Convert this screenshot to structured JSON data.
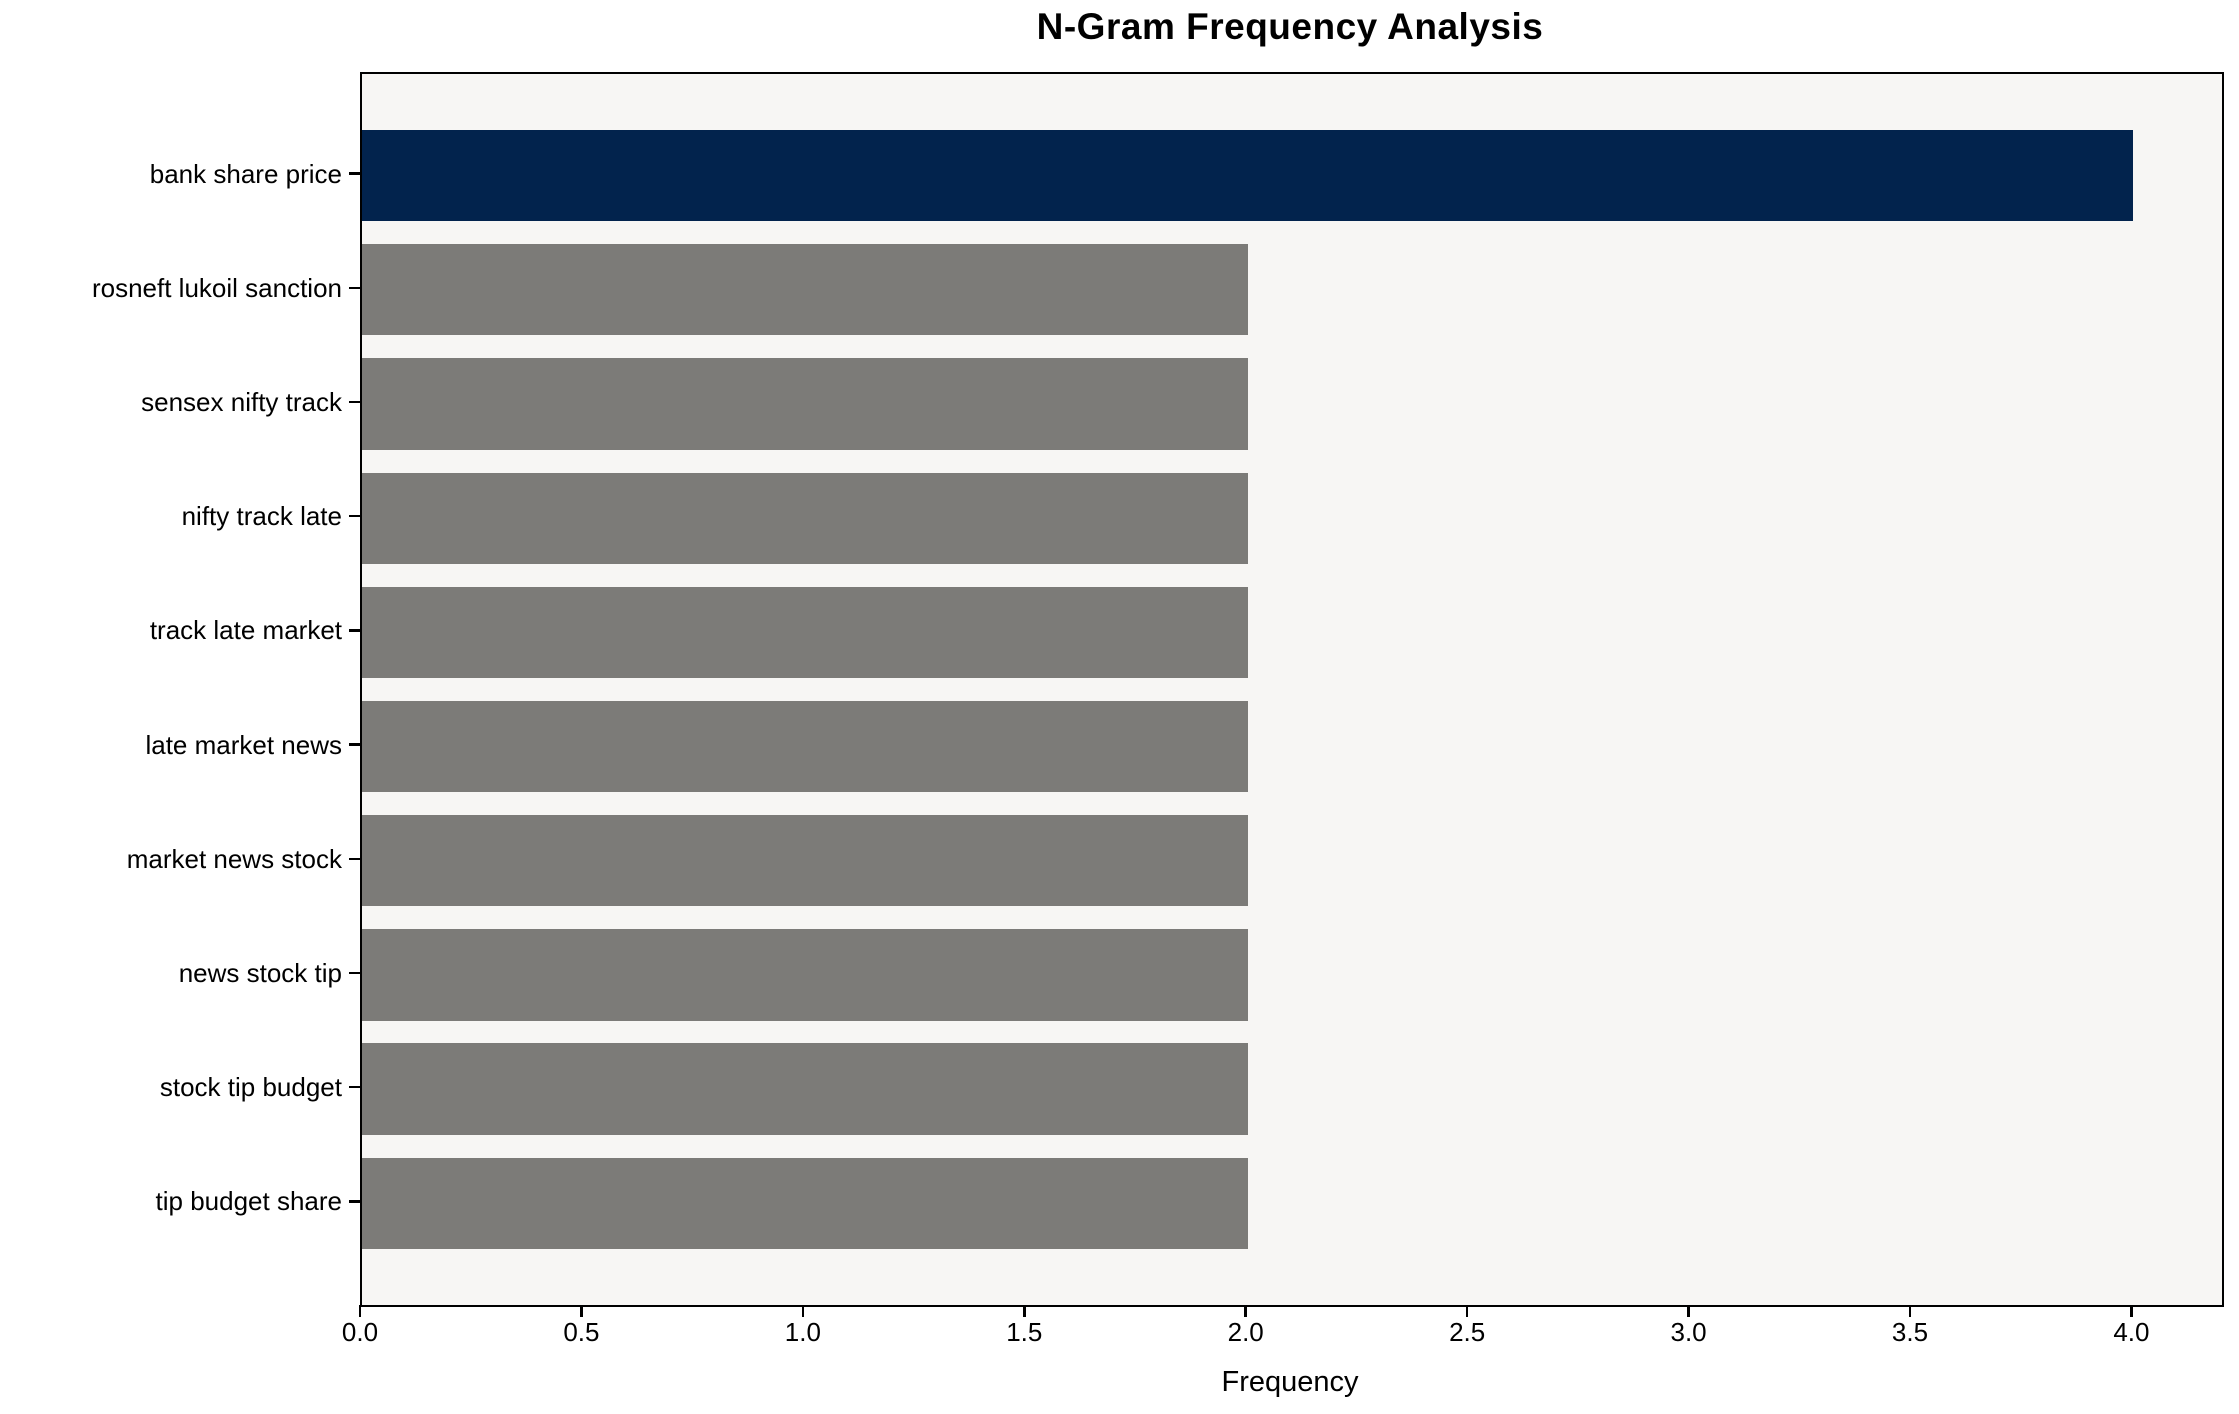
{
  "chart_data": {
    "type": "bar",
    "orientation": "horizontal",
    "title": "N-Gram Frequency Analysis",
    "xlabel": "Frequency",
    "ylabel": "",
    "categories": [
      "bank share price",
      "rosneft lukoil sanction",
      "sensex nifty track",
      "nifty track late",
      "track late market",
      "late market news",
      "market news stock",
      "news stock tip",
      "stock tip budget",
      "tip budget share"
    ],
    "values": [
      4,
      2,
      2,
      2,
      2,
      2,
      2,
      2,
      2,
      2
    ],
    "bar_colors": [
      "#02234d",
      "#7c7b78",
      "#7c7b78",
      "#7c7b78",
      "#7c7b78",
      "#7c7b78",
      "#7c7b78",
      "#7c7b78",
      "#7c7b78",
      "#7c7b78"
    ],
    "xticks": [
      "0.0",
      "0.5",
      "1.0",
      "1.5",
      "2.0",
      "2.5",
      "3.0",
      "3.5",
      "4.0"
    ],
    "xtick_values": [
      0,
      0.5,
      1,
      1.5,
      2,
      2.5,
      3,
      3.5,
      4
    ],
    "xlim": [
      0,
      4.2
    ],
    "ylim": [
      -0.89,
      9.89
    ],
    "bar_height_fraction": 0.8,
    "grid": false,
    "legend": null,
    "colors": {
      "highlight_bar": "#02234d",
      "default_bar": "#7c7b78",
      "plot_background": "#f7f6f4",
      "figure_background": "#ffffff",
      "axis": "#000000",
      "text": "#000000"
    }
  }
}
